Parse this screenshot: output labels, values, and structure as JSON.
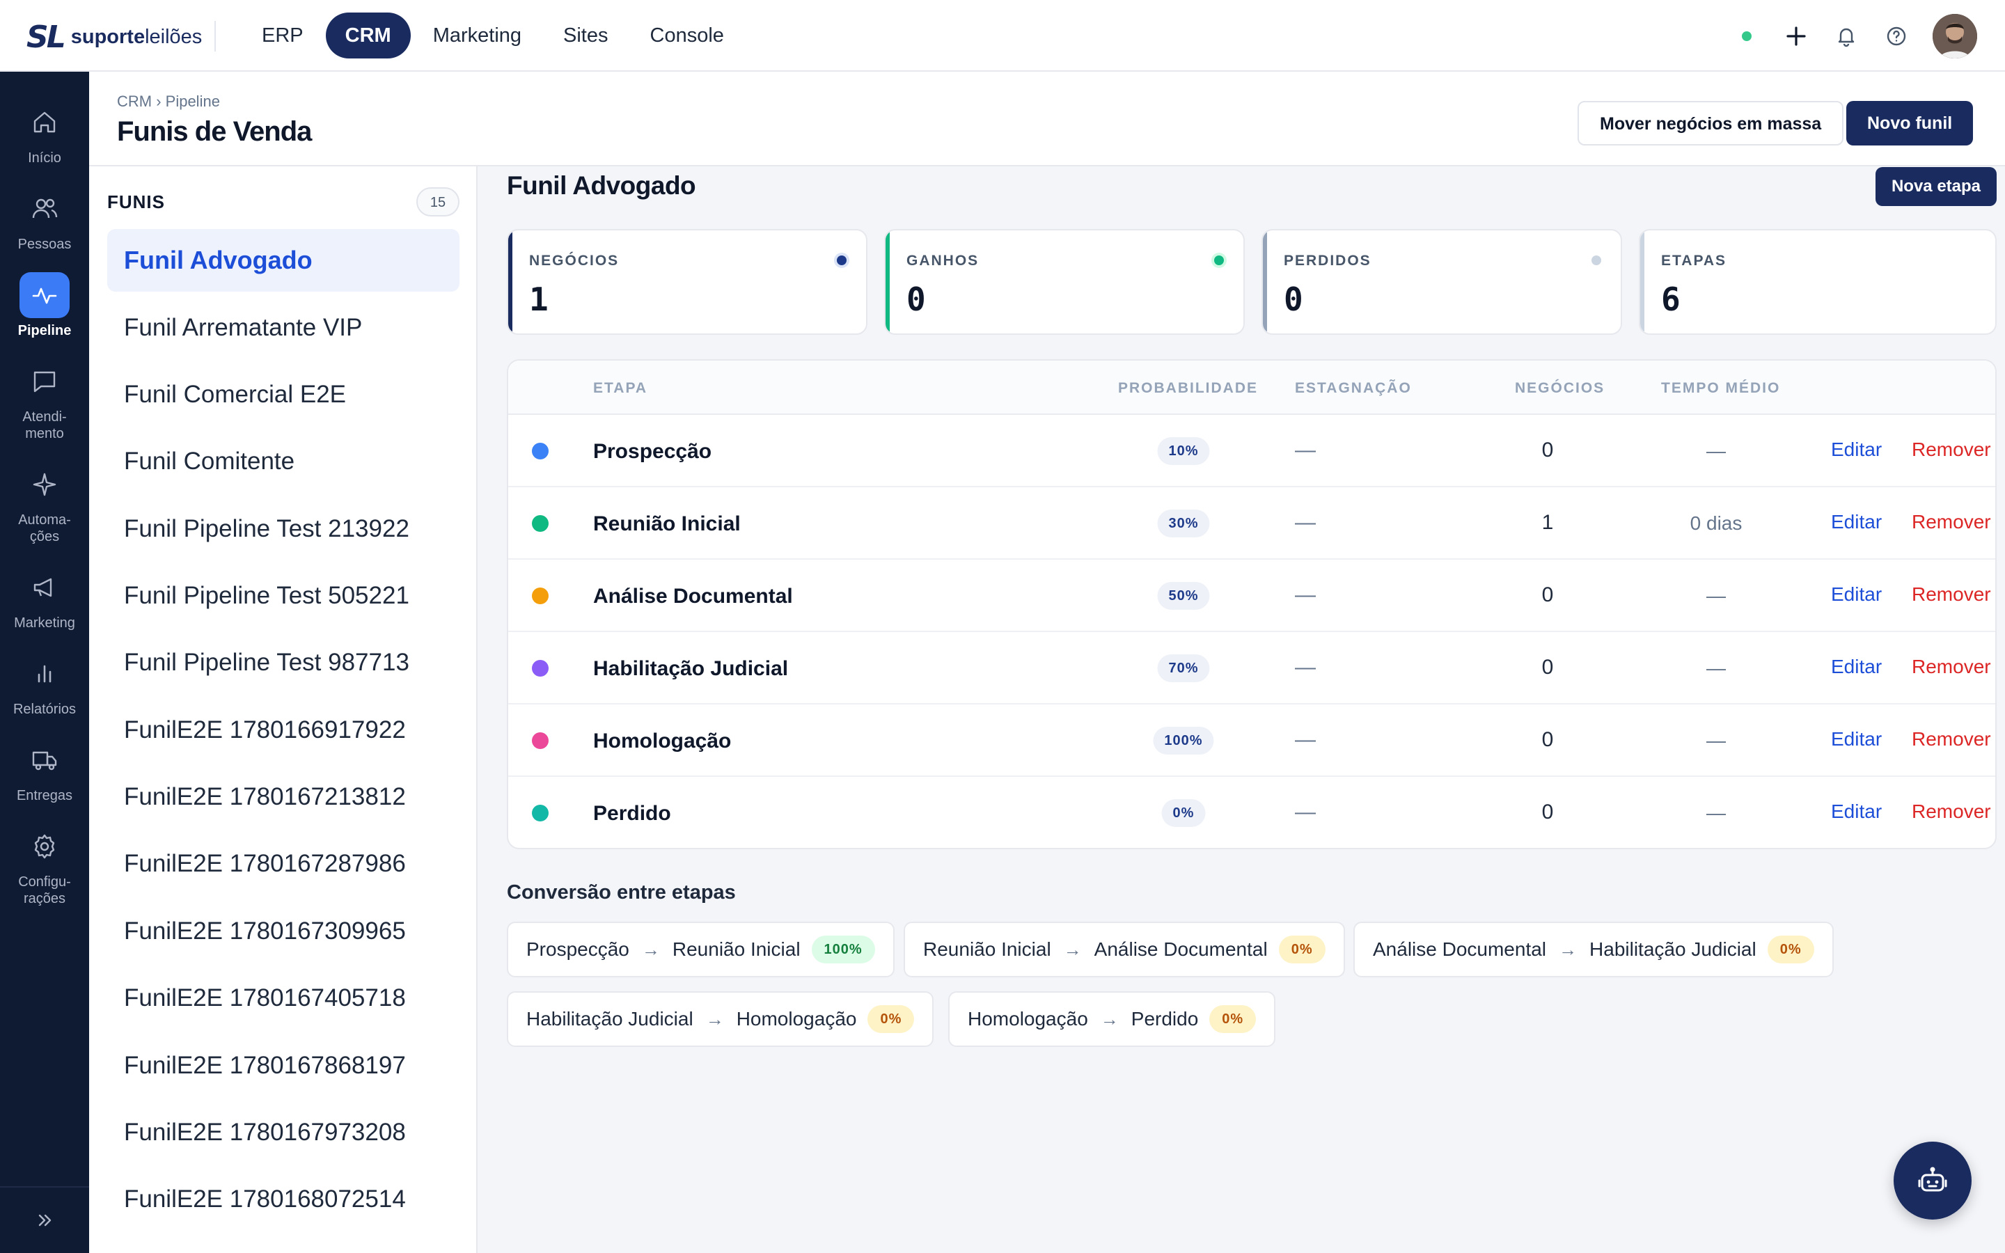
{
  "brand": {
    "mark": "SL",
    "name_bold": "suporte",
    "name_light": "leilões"
  },
  "topnav": [
    {
      "label": "ERP"
    },
    {
      "label": "CRM",
      "active": true
    },
    {
      "label": "Marketing"
    },
    {
      "label": "Sites"
    },
    {
      "label": "Console"
    }
  ],
  "topbar_icons": [
    "status-dot",
    "plus-icon",
    "bell-icon",
    "help-icon",
    "user-avatar"
  ],
  "rail": [
    {
      "label": "Início",
      "icon": "home-icon"
    },
    {
      "label": "Pessoas",
      "icon": "people-icon"
    },
    {
      "label": "Pipeline",
      "icon": "pipeline-icon",
      "active": true
    },
    {
      "label_lines": [
        "Atendi-",
        "mento"
      ],
      "icon": "chat-icon"
    },
    {
      "label_lines": [
        "Automa-",
        "ções"
      ],
      "icon": "sparkle-icon"
    },
    {
      "label": "Marketing",
      "icon": "megaphone-icon"
    },
    {
      "label": "Relatórios",
      "icon": "bar-chart-icon"
    },
    {
      "label": "Entregas",
      "icon": "truck-icon"
    },
    {
      "label_lines": [
        "Configu-",
        "rações"
      ],
      "icon": "gear-icon"
    }
  ],
  "header": {
    "breadcrumb": "CRM › Pipeline",
    "title": "Funis de Venda",
    "mass_move_label": "Mover negócios em massa",
    "new_funnel_label": "Novo funil"
  },
  "funnels": {
    "title": "FUNIS",
    "count": "15",
    "items": [
      "Funil Advogado",
      "Funil Arrematante VIP",
      "Funil Comercial E2E",
      "Funil Comitente",
      "Funil Pipeline Test 213922",
      "Funil Pipeline Test 505221",
      "Funil Pipeline Test 987713",
      "FunilE2E 1780166917922",
      "FunilE2E 1780167213812",
      "FunilE2E 1780167287986",
      "FunilE2E 1780167309965",
      "FunilE2E 1780167405718",
      "FunilE2E 1780167868197",
      "FunilE2E 1780167973208",
      "FunilE2E 1780168072514"
    ],
    "active_index": 0
  },
  "main": {
    "title": "Funil Advogado",
    "new_stage_label": "Nova etapa"
  },
  "kpis": [
    {
      "label": "NEGÓCIOS",
      "value": "1",
      "accent": "#1a2b5f",
      "dot": "#1d3a8a"
    },
    {
      "label": "GANHOS",
      "value": "0",
      "accent": "#10b981",
      "dot": "#10b981"
    },
    {
      "label": "PERDIDOS",
      "value": "0",
      "accent": "#94a3b8",
      "dot": "#cbd5e1"
    },
    {
      "label": "ETAPAS",
      "value": "6",
      "accent": "#cbd5e1",
      "dot": null
    }
  ],
  "stages_table": {
    "headers": {
      "stage": "ETAPA",
      "probability": "PROBABILIDADE",
      "stagnation": "ESTAGNAÇÃO",
      "deals": "NEGÓCIOS",
      "avg_time": "TEMPO MÉDIO"
    },
    "edit_label": "Editar",
    "remove_label": "Remover",
    "rows": [
      {
        "name": "Prospecção",
        "color": "#3b82f6",
        "probability": "10%",
        "stagnation": "—",
        "deals": "0",
        "avg_time": "—"
      },
      {
        "name": "Reunião Inicial",
        "color": "#10b981",
        "probability": "30%",
        "stagnation": "—",
        "deals": "1",
        "avg_time": "0 dias"
      },
      {
        "name": "Análise Documental",
        "color": "#f59e0b",
        "probability": "50%",
        "stagnation": "—",
        "deals": "0",
        "avg_time": "—"
      },
      {
        "name": "Habilitação Judicial",
        "color": "#8b5cf6",
        "probability": "70%",
        "stagnation": "—",
        "deals": "0",
        "avg_time": "—"
      },
      {
        "name": "Homologação",
        "color": "#ec4899",
        "probability": "100%",
        "stagnation": "—",
        "deals": "0",
        "avg_time": "—"
      },
      {
        "name": "Perdido",
        "color": "#14b8a6",
        "probability": "0%",
        "stagnation": "—",
        "deals": "0",
        "avg_time": "—"
      }
    ]
  },
  "conversion": {
    "title": "Conversão entre etapas",
    "arrow": "→",
    "items": [
      {
        "from": "Prospecção",
        "to": "Reunião Inicial",
        "rate": "100%"
      },
      {
        "from": "Reunião Inicial",
        "to": "Análise Documental",
        "rate": "0%"
      },
      {
        "from": "Análise Documental",
        "to": "Habilitação Judicial",
        "rate": "0%"
      },
      {
        "from": "Habilitação Judicial",
        "to": "Homologação",
        "rate": "0%"
      },
      {
        "from": "Homologação",
        "to": "Perdido",
        "rate": "0%"
      }
    ]
  },
  "assistant": {
    "icon": "robot-icon"
  }
}
